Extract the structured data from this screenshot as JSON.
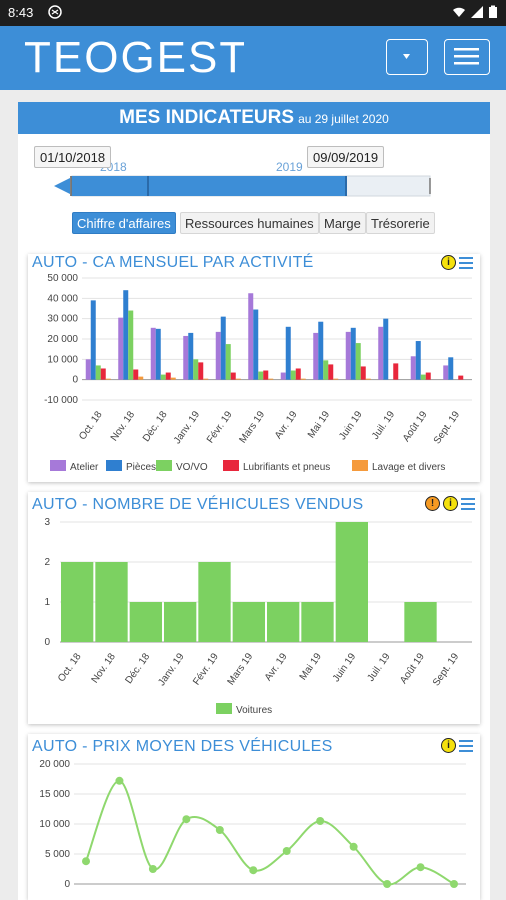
{
  "status": {
    "time": "8:43"
  },
  "app": {
    "logo_text": "TEOGEST"
  },
  "header": {
    "title": "MES INDICATEURS",
    "date": "au 29 juillet 2020"
  },
  "range": {
    "start": "01/10/2018",
    "end": "09/09/2019",
    "year1": "2018",
    "year2": "2019"
  },
  "tabs": [
    {
      "label": "Chiffre d'affaires",
      "active": true
    },
    {
      "label": "Ressources humaines",
      "active": false
    },
    {
      "label": "Marge",
      "active": false
    },
    {
      "label": "Trésorerie",
      "active": false
    }
  ],
  "colors": {
    "accent": "#3d8ed7",
    "atelier": "#a679d9",
    "pieces": "#2f7fd0",
    "vovo": "#7cd161",
    "lubrifiants": "#e8273c",
    "lavage": "#f59a3c",
    "voitures": "#7cd161",
    "prix": "#8fd86e"
  },
  "chart_data": [
    {
      "type": "bar",
      "title": "AUTO - CA MENSUEL PAR ACTIVITÉ",
      "categories": [
        "Oct. 18",
        "Nov. 18",
        "Déc. 18",
        "Janv. 19",
        "Févr. 19",
        "Mars 19",
        "Avr. 19",
        "Mai 19",
        "Juin 19",
        "Juil. 19",
        "Août 19",
        "Sept. 19"
      ],
      "ylim": [
        -10000,
        50000
      ],
      "yticks": [
        "50 000",
        "40 000",
        "30 000",
        "20 000",
        "10 000",
        "0",
        "-10 000"
      ],
      "series": [
        {
          "name": "Atelier",
          "values": [
            10000,
            30500,
            25500,
            21500,
            23500,
            42500,
            3500,
            23000,
            23500,
            26000,
            11500,
            7000
          ]
        },
        {
          "name": "Pièces",
          "values": [
            39000,
            44000,
            25000,
            23000,
            31000,
            34500,
            26000,
            28500,
            25500,
            30000,
            19000,
            11000
          ]
        },
        {
          "name": "VO/VO",
          "values": [
            7000,
            34000,
            2500,
            10000,
            17500,
            4000,
            4500,
            9500,
            18000,
            0,
            2500,
            0
          ]
        },
        {
          "name": "Lubrifiants et pneus",
          "values": [
            5500,
            5000,
            3500,
            8500,
            3500,
            4500,
            5500,
            7500,
            6500,
            8000,
            3500,
            2000
          ]
        },
        {
          "name": "Lavage et divers",
          "values": [
            500,
            1500,
            1000,
            500,
            500,
            500,
            500,
            500,
            500,
            0,
            0,
            0
          ]
        }
      ]
    },
    {
      "type": "bar",
      "title": "AUTO - NOMBRE DE VÉHICULES VENDUS",
      "categories": [
        "Oct. 18",
        "Nov. 18",
        "Déc. 18",
        "Janv. 19",
        "Févr. 19",
        "Mars 19",
        "Avr. 19",
        "Mai 19",
        "Juin 19",
        "Juil. 19",
        "Août 19",
        "Sept. 19"
      ],
      "ylim": [
        0,
        3
      ],
      "yticks": [
        "3",
        "2",
        "1",
        "0"
      ],
      "series": [
        {
          "name": "Voitures",
          "values": [
            2,
            2,
            1,
            1,
            2,
            1,
            1,
            1,
            3,
            0,
            1,
            0
          ]
        }
      ]
    },
    {
      "type": "line",
      "title": "AUTO - PRIX MOYEN DES VÉHICULES",
      "ylim": [
        0,
        20000
      ],
      "yticks": [
        "20 000",
        "15 000",
        "10 000",
        "5 000",
        "0"
      ],
      "series": [
        {
          "values": [
            3800,
            17200,
            2500,
            10800,
            9000,
            2300,
            5500,
            10500,
            6200,
            0,
            2800,
            0
          ]
        }
      ]
    }
  ]
}
